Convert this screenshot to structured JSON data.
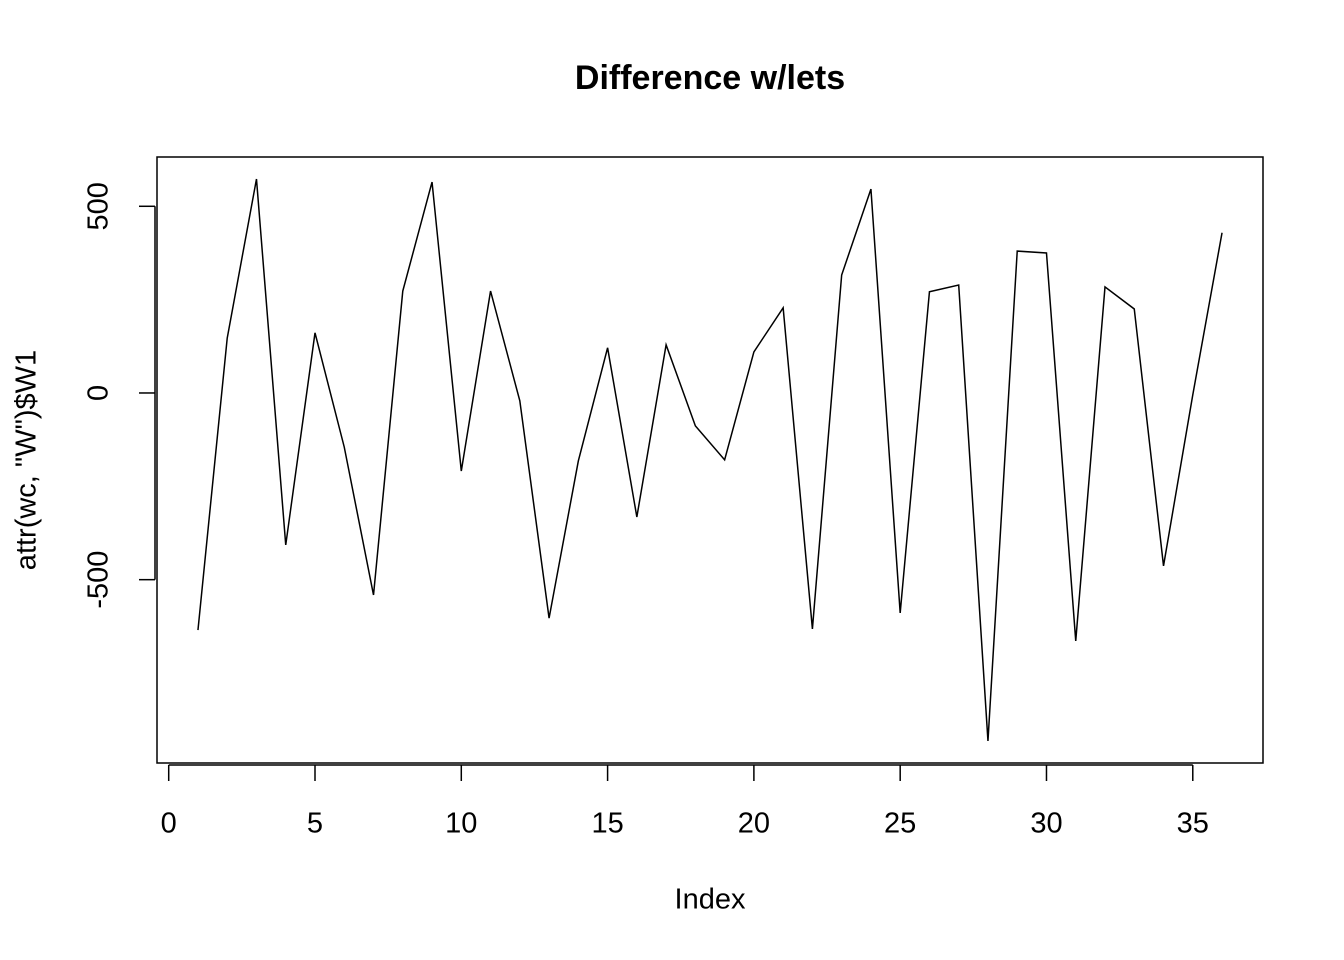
{
  "chart_data": {
    "type": "line",
    "title": "Difference w/lets",
    "x_label": "Index",
    "y_label": "attr(wc, \"W\")$W1",
    "x": [
      1,
      2,
      3,
      4,
      5,
      6,
      7,
      8,
      9,
      10,
      11,
      12,
      13,
      14,
      15,
      16,
      17,
      18,
      19,
      20,
      21,
      22,
      23,
      24,
      25,
      26,
      27,
      28,
      29,
      30,
      31,
      32,
      33,
      34,
      35,
      36
    ],
    "series": [
      {
        "name": "W1",
        "color": "#000000",
        "values": [
          -635,
          147,
          573,
          -407,
          161,
          -145,
          -541,
          273,
          565,
          -209,
          273,
          -21,
          -603,
          -182,
          121,
          -332,
          129,
          -88,
          -179,
          110,
          228,
          -632,
          316,
          546,
          -589,
          271,
          289,
          -932,
          380,
          375,
          -664,
          284,
          225,
          -463,
          -5,
          429
        ]
      }
    ],
    "xlim": [
      -0.4,
      37.4
    ],
    "xticks": [
      0,
      5,
      10,
      15,
      20,
      25,
      30,
      35
    ],
    "ylim": [
      -991,
      632
    ],
    "yticks": [
      -500,
      0,
      500
    ]
  }
}
